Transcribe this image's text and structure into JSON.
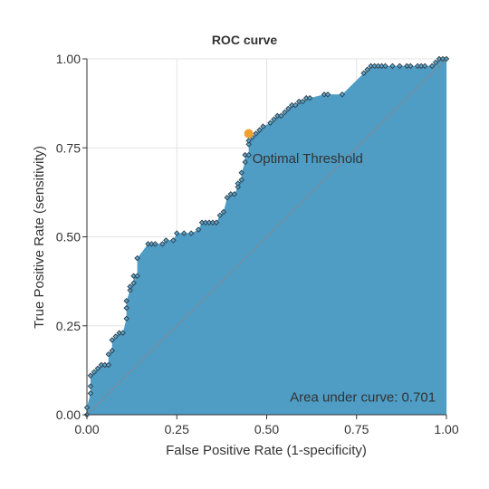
{
  "chart_data": {
    "type": "area",
    "title": "ROC curve",
    "xlabel": "False Positive Rate (1-specificity)",
    "ylabel": "True Positive Rate (sensitivity)",
    "xlim": [
      0,
      1
    ],
    "ylim": [
      0,
      1
    ],
    "xticks": [
      "0.00",
      "0.25",
      "0.50",
      "0.75",
      "1.00"
    ],
    "yticks": [
      "0.00",
      "0.25",
      "0.50",
      "0.75",
      "1.00"
    ],
    "grid": true,
    "fill_color": "#4f9cc4",
    "diagonal_color": "#7a8d99",
    "optimal_point_color": "#f0a030",
    "series": [
      {
        "values": [
          [
            0.0,
            0.0
          ],
          [
            0.0,
            0.02
          ],
          [
            0.01,
            0.06
          ],
          [
            0.01,
            0.08
          ],
          [
            0.01,
            0.11
          ],
          [
            0.02,
            0.12
          ],
          [
            0.03,
            0.13
          ],
          [
            0.04,
            0.14
          ],
          [
            0.05,
            0.14
          ],
          [
            0.06,
            0.14
          ],
          [
            0.06,
            0.17
          ],
          [
            0.07,
            0.18
          ],
          [
            0.07,
            0.21
          ],
          [
            0.08,
            0.22
          ],
          [
            0.09,
            0.23
          ],
          [
            0.1,
            0.23
          ],
          [
            0.11,
            0.27
          ],
          [
            0.11,
            0.3
          ],
          [
            0.11,
            0.32
          ],
          [
            0.12,
            0.35
          ],
          [
            0.12,
            0.36
          ],
          [
            0.13,
            0.37
          ],
          [
            0.13,
            0.39
          ],
          [
            0.14,
            0.39
          ],
          [
            0.14,
            0.44
          ],
          [
            0.17,
            0.48
          ],
          [
            0.18,
            0.48
          ],
          [
            0.19,
            0.48
          ],
          [
            0.21,
            0.48
          ],
          [
            0.22,
            0.49
          ],
          [
            0.24,
            0.49
          ],
          [
            0.25,
            0.51
          ],
          [
            0.27,
            0.51
          ],
          [
            0.29,
            0.51
          ],
          [
            0.31,
            0.52
          ],
          [
            0.32,
            0.54
          ],
          [
            0.33,
            0.54
          ],
          [
            0.34,
            0.54
          ],
          [
            0.35,
            0.54
          ],
          [
            0.36,
            0.54
          ],
          [
            0.37,
            0.56
          ],
          [
            0.38,
            0.57
          ],
          [
            0.39,
            0.61
          ],
          [
            0.4,
            0.62
          ],
          [
            0.41,
            0.62
          ],
          [
            0.42,
            0.64
          ],
          [
            0.42,
            0.65
          ],
          [
            0.43,
            0.66
          ],
          [
            0.43,
            0.68
          ],
          [
            0.44,
            0.71
          ],
          [
            0.44,
            0.73
          ],
          [
            0.45,
            0.73
          ],
          [
            0.45,
            0.76
          ],
          [
            0.45,
            0.77
          ],
          [
            0.46,
            0.78
          ],
          [
            0.47,
            0.79
          ],
          [
            0.48,
            0.8
          ],
          [
            0.49,
            0.81
          ],
          [
            0.51,
            0.82
          ],
          [
            0.52,
            0.83
          ],
          [
            0.53,
            0.84
          ],
          [
            0.54,
            0.84
          ],
          [
            0.55,
            0.85
          ],
          [
            0.56,
            0.86
          ],
          [
            0.57,
            0.87
          ],
          [
            0.58,
            0.87
          ],
          [
            0.59,
            0.88
          ],
          [
            0.6,
            0.88
          ],
          [
            0.61,
            0.89
          ],
          [
            0.62,
            0.89
          ],
          [
            0.66,
            0.9
          ],
          [
            0.67,
            0.9
          ],
          [
            0.71,
            0.9
          ],
          [
            0.77,
            0.96
          ],
          [
            0.78,
            0.97
          ],
          [
            0.79,
            0.98
          ],
          [
            0.8,
            0.98
          ],
          [
            0.81,
            0.98
          ],
          [
            0.82,
            0.98
          ],
          [
            0.83,
            0.98
          ],
          [
            0.85,
            0.98
          ],
          [
            0.87,
            0.98
          ],
          [
            0.89,
            0.98
          ],
          [
            0.9,
            0.98
          ],
          [
            0.92,
            0.98
          ],
          [
            0.93,
            0.98
          ],
          [
            0.94,
            0.98
          ],
          [
            0.96,
            0.98
          ],
          [
            0.97,
            0.99
          ],
          [
            0.98,
            1.0
          ],
          [
            0.99,
            1.0
          ],
          [
            1.0,
            1.0
          ]
        ]
      }
    ],
    "optimal_point": [
      0.45,
      0.79
    ],
    "annotations": [
      {
        "text": "Optimal Threshold",
        "x": 0.46,
        "y": 0.72
      },
      {
        "text": "Area under curve: 0.701",
        "x": 0.97,
        "y": 0.05
      }
    ]
  }
}
